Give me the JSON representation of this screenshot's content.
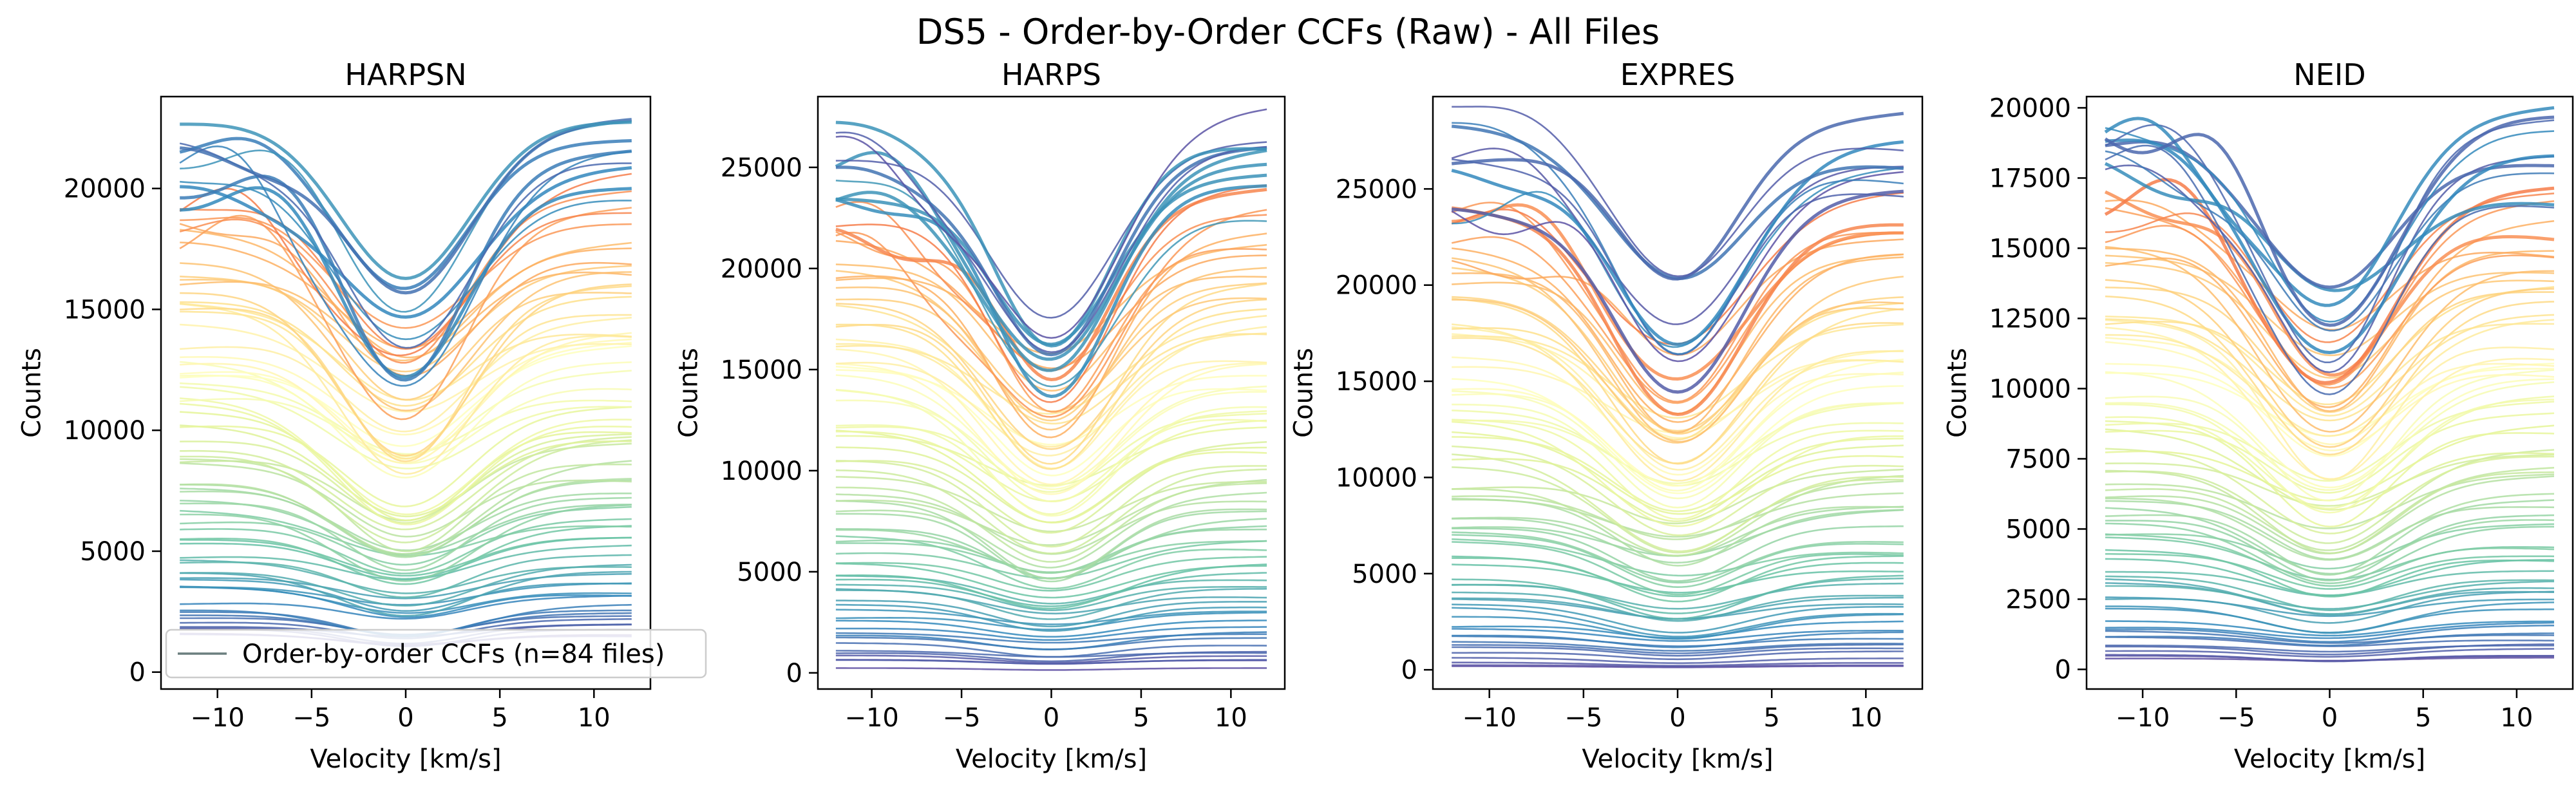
{
  "figure": {
    "suptitle": "DS5 - Order-by-Order CCFs (Raw) - All Files"
  },
  "chart_data": [
    {
      "type": "line",
      "title": "HARPSN",
      "xlabel": "Velocity [km/s]",
      "ylabel": "Counts",
      "xlim": [
        -13,
        13
      ],
      "ylim": [
        -700,
        23800
      ],
      "xticks": [
        -10,
        -5,
        0,
        5,
        10
      ],
      "xtick_labels": [
        "−10",
        "−5",
        "0",
        "5",
        "10"
      ],
      "yticks": [
        0,
        5000,
        10000,
        15000,
        20000
      ],
      "ytick_labels": [
        "0",
        "5000",
        "10000",
        "15000",
        "20000"
      ],
      "grid": false,
      "legend": {
        "placement": "lower-left",
        "entries": [
          "Order-by-order CCFs (n=84 files)"
        ],
        "color": "#6b7f7f"
      },
      "series_summary": {
        "count": 84,
        "x_range": [
          -12,
          12
        ],
        "continuum_min": 1500,
        "continuum_max": 22600,
        "colormap": "Spectral"
      }
    },
    {
      "type": "line",
      "title": "HARPS",
      "xlabel": "Velocity [km/s]",
      "ylabel": "Counts",
      "xlim": [
        -13,
        13
      ],
      "ylim": [
        -800,
        28500
      ],
      "xticks": [
        -10,
        -5,
        0,
        5,
        10
      ],
      "xtick_labels": [
        "−10",
        "−5",
        "0",
        "5",
        "10"
      ],
      "yticks": [
        0,
        5000,
        10000,
        15000,
        20000,
        25000
      ],
      "ytick_labels": [
        "0",
        "5000",
        "10000",
        "15000",
        "20000",
        "25000"
      ],
      "grid": false,
      "series_summary": {
        "count": 84,
        "x_range": [
          -12,
          12
        ],
        "continuum_min": 400,
        "continuum_max": 27000,
        "colormap": "Spectral"
      }
    },
    {
      "type": "line",
      "title": "EXPRES",
      "xlabel": "Velocity [km/s]",
      "ylabel": "Counts",
      "xlim": [
        -13,
        13
      ],
      "ylim": [
        -1000,
        29800
      ],
      "xticks": [
        -10,
        -5,
        0,
        5,
        10
      ],
      "xtick_labels": [
        "−10",
        "−5",
        "0",
        "5",
        "10"
      ],
      "yticks": [
        0,
        5000,
        10000,
        15000,
        20000,
        25000
      ],
      "ytick_labels": [
        "0",
        "5000",
        "10000",
        "15000",
        "20000",
        "25000"
      ],
      "grid": false,
      "series_summary": {
        "count": 84,
        "x_range": [
          -12,
          12
        ],
        "continuum_min": 200,
        "continuum_max": 28200,
        "colormap": "Spectral"
      }
    },
    {
      "type": "line",
      "title": "NEID",
      "xlabel": "Velocity [km/s]",
      "ylabel": "Counts",
      "xlim": [
        -13,
        13
      ],
      "ylim": [
        -700,
        20400
      ],
      "xticks": [
        -10,
        -5,
        0,
        5,
        10
      ],
      "xtick_labels": [
        "−10",
        "−5",
        "0",
        "5",
        "10"
      ],
      "yticks": [
        0,
        2500,
        5000,
        7500,
        10000,
        12500,
        15000,
        17500,
        20000
      ],
      "ytick_labels": [
        "0",
        "2500",
        "5000",
        "7500",
        "10000",
        "12500",
        "15000",
        "17500",
        "20000"
      ],
      "grid": false,
      "series_summary": {
        "count": 84,
        "x_range": [
          -12,
          12
        ],
        "continuum_min": 300,
        "continuum_max": 19700,
        "colormap": "Spectral"
      }
    }
  ]
}
